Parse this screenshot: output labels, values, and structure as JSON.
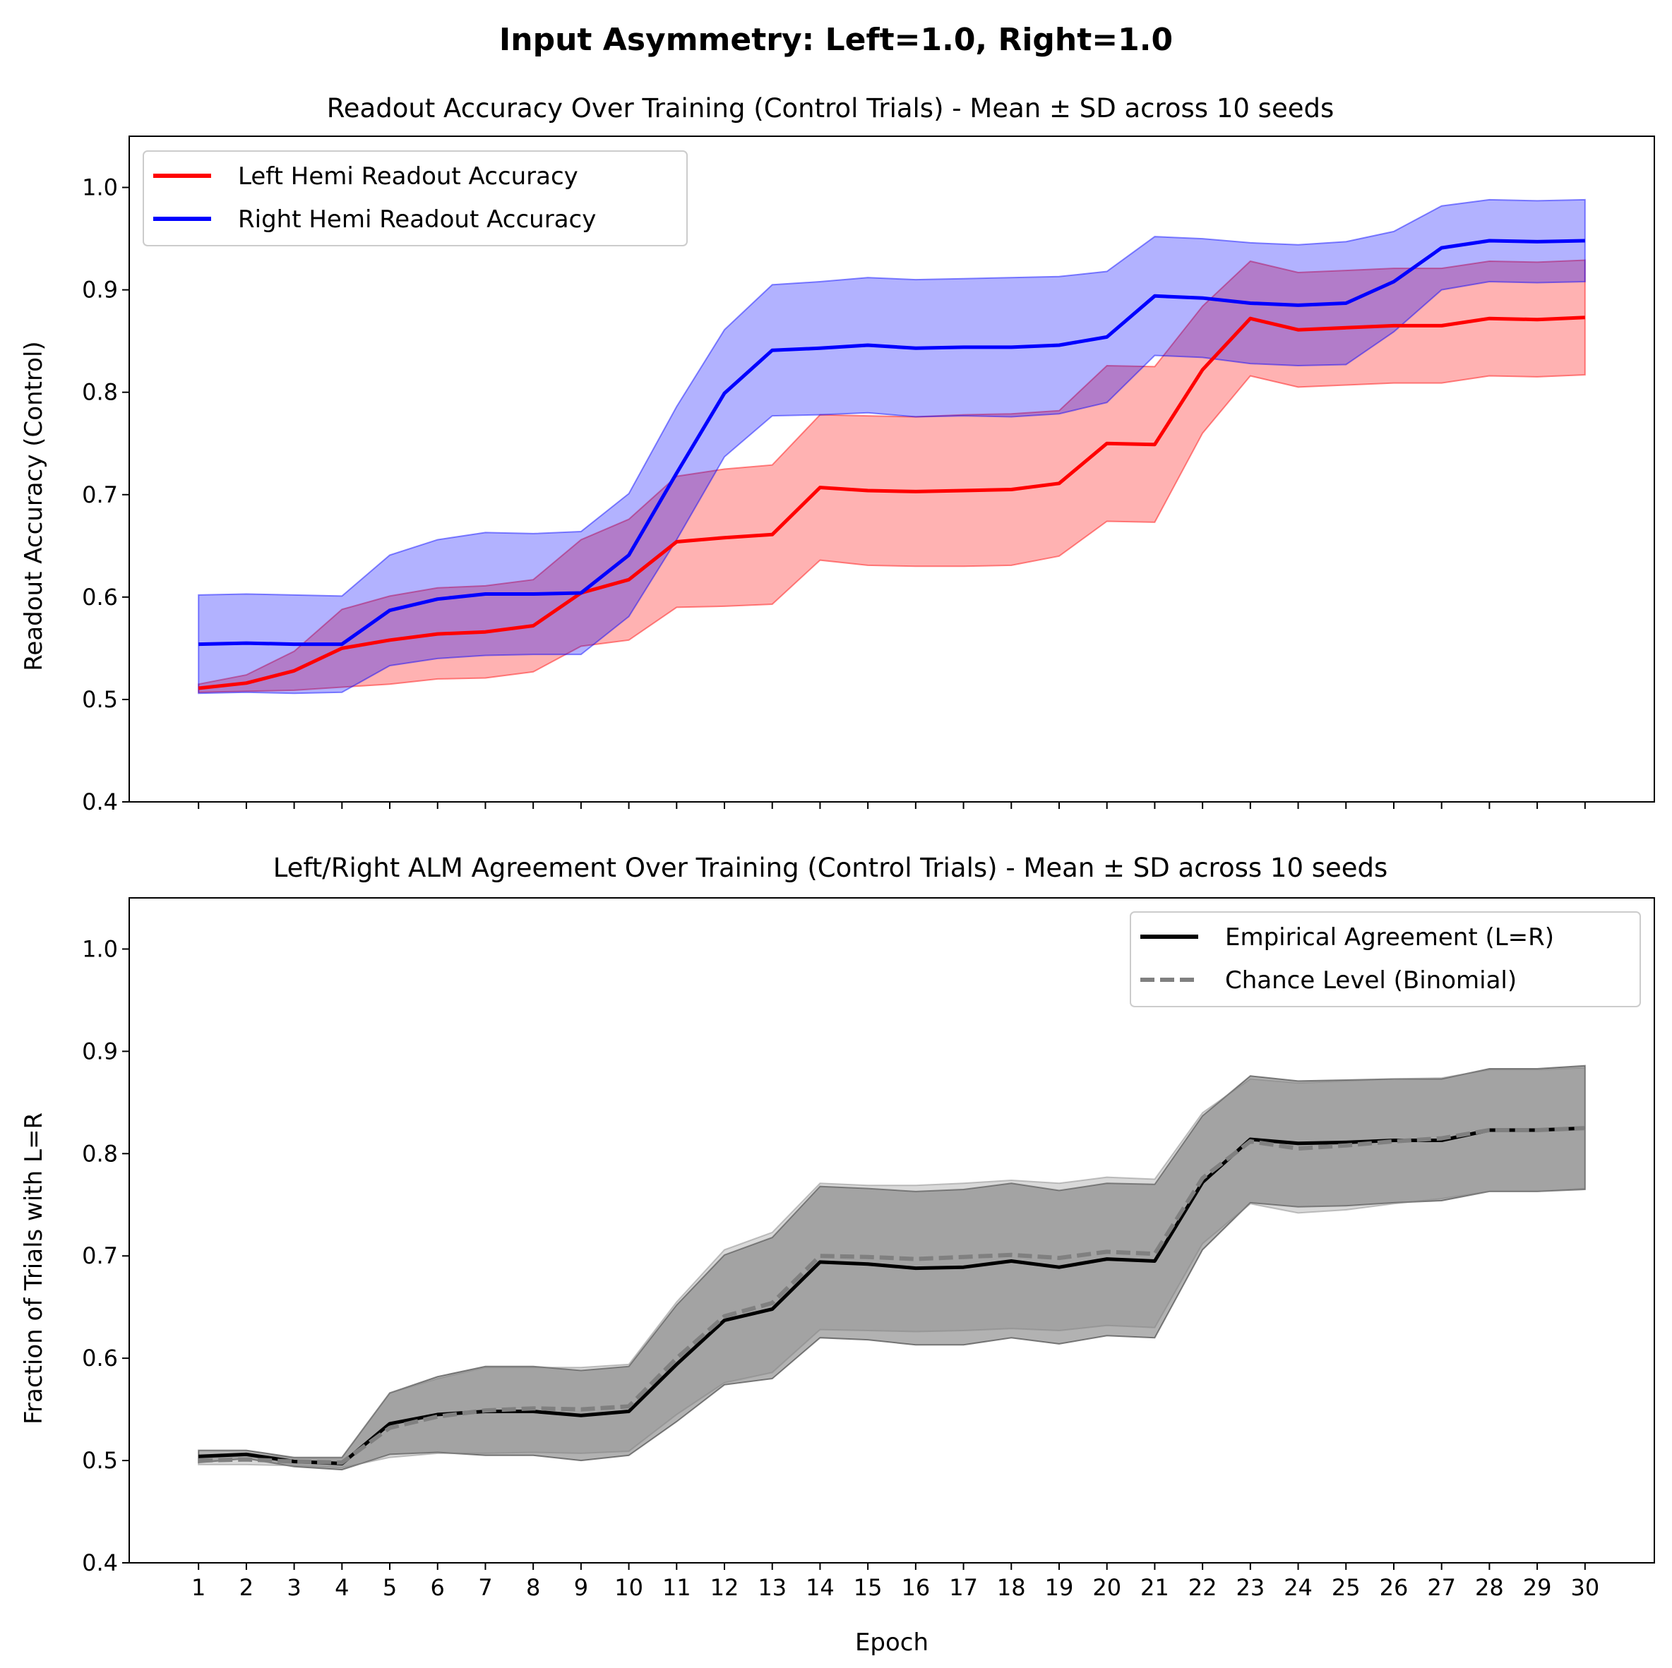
{
  "figure": {
    "suptitle": "Input Asymmetry: Left=1.0, Right=1.0"
  },
  "chart_data": [
    {
      "type": "line",
      "title": "Readout Accuracy Over Training (Control Trials) - Mean ± SD across 10 seeds",
      "xlabel": "",
      "ylabel": "Readout Accuracy (Control)",
      "x": [
        1,
        2,
        3,
        4,
        5,
        6,
        7,
        8,
        9,
        10,
        11,
        12,
        13,
        14,
        15,
        16,
        17,
        18,
        19,
        20,
        21,
        22,
        23,
        24,
        25,
        26,
        27,
        28,
        29,
        30
      ],
      "xlim": [
        -0.45,
        31.45
      ],
      "ylim": [
        0.4,
        1.05
      ],
      "yticks": [
        "0.4",
        "0.5",
        "0.6",
        "0.7",
        "0.8",
        "0.9",
        "1.0"
      ],
      "xtick_labels_shown": false,
      "grid": false,
      "legend_position": "upper-left",
      "series": [
        {
          "name": "Left Hemi Readout Accuracy",
          "color": "#ff0000",
          "values": [
            0.511,
            0.516,
            0.528,
            0.55,
            0.558,
            0.564,
            0.566,
            0.572,
            0.604,
            0.617,
            0.654,
            0.658,
            0.661,
            0.707,
            0.704,
            0.703,
            0.704,
            0.705,
            0.711,
            0.75,
            0.749,
            0.822,
            0.872,
            0.861,
            0.863,
            0.865,
            0.865,
            0.872,
            0.871,
            0.873
          ],
          "upper": [
            0.515,
            0.524,
            0.547,
            0.588,
            0.601,
            0.609,
            0.611,
            0.617,
            0.656,
            0.676,
            0.718,
            0.725,
            0.729,
            0.778,
            0.777,
            0.776,
            0.778,
            0.779,
            0.782,
            0.826,
            0.825,
            0.884,
            0.928,
            0.917,
            0.919,
            0.921,
            0.921,
            0.928,
            0.927,
            0.929
          ],
          "lower": [
            0.507,
            0.508,
            0.509,
            0.512,
            0.515,
            0.52,
            0.521,
            0.527,
            0.552,
            0.558,
            0.59,
            0.591,
            0.593,
            0.636,
            0.631,
            0.63,
            0.63,
            0.631,
            0.64,
            0.674,
            0.673,
            0.76,
            0.816,
            0.805,
            0.807,
            0.809,
            0.809,
            0.816,
            0.815,
            0.817
          ]
        },
        {
          "name": "Right Hemi Readout Accuracy",
          "color": "#0000ff",
          "values": [
            0.554,
            0.555,
            0.554,
            0.554,
            0.587,
            0.598,
            0.603,
            0.603,
            0.604,
            0.641,
            0.721,
            0.799,
            0.841,
            0.843,
            0.846,
            0.843,
            0.844,
            0.844,
            0.846,
            0.854,
            0.894,
            0.892,
            0.887,
            0.885,
            0.887,
            0.908,
            0.941,
            0.948,
            0.947,
            0.948
          ],
          "upper": [
            0.602,
            0.603,
            0.602,
            0.601,
            0.641,
            0.656,
            0.663,
            0.662,
            0.664,
            0.701,
            0.786,
            0.861,
            0.905,
            0.908,
            0.912,
            0.91,
            0.911,
            0.912,
            0.913,
            0.918,
            0.952,
            0.95,
            0.946,
            0.944,
            0.947,
            0.957,
            0.982,
            0.988,
            0.987,
            0.988
          ],
          "lower": [
            0.506,
            0.507,
            0.506,
            0.507,
            0.533,
            0.54,
            0.543,
            0.544,
            0.544,
            0.581,
            0.656,
            0.737,
            0.777,
            0.778,
            0.78,
            0.776,
            0.777,
            0.776,
            0.779,
            0.79,
            0.836,
            0.834,
            0.828,
            0.826,
            0.827,
            0.859,
            0.9,
            0.908,
            0.907,
            0.908
          ]
        }
      ]
    },
    {
      "type": "line",
      "title": "Left/Right ALM Agreement Over Training (Control Trials) - Mean ± SD across 10 seeds",
      "xlabel": "Epoch",
      "ylabel": "Fraction of Trials with L=R",
      "x": [
        1,
        2,
        3,
        4,
        5,
        6,
        7,
        8,
        9,
        10,
        11,
        12,
        13,
        14,
        15,
        16,
        17,
        18,
        19,
        20,
        21,
        22,
        23,
        24,
        25,
        26,
        27,
        28,
        29,
        30
      ],
      "xlim": [
        -0.45,
        31.45
      ],
      "ylim": [
        0.4,
        1.05
      ],
      "yticks": [
        "0.4",
        "0.5",
        "0.6",
        "0.7",
        "0.8",
        "0.9",
        "1.0"
      ],
      "xticks": [
        "1",
        "2",
        "3",
        "4",
        "5",
        "6",
        "7",
        "8",
        "9",
        "10",
        "11",
        "12",
        "13",
        "14",
        "15",
        "16",
        "17",
        "18",
        "19",
        "20",
        "21",
        "22",
        "23",
        "24",
        "25",
        "26",
        "27",
        "28",
        "29",
        "30"
      ],
      "grid": false,
      "legend_position": "upper-right",
      "series": [
        {
          "name": "Empirical Agreement (L=R)",
          "color": "#000000",
          "dashed": false,
          "values": [
            0.504,
            0.506,
            0.499,
            0.497,
            0.536,
            0.545,
            0.548,
            0.548,
            0.544,
            0.548,
            0.594,
            0.637,
            0.648,
            0.694,
            0.692,
            0.688,
            0.689,
            0.695,
            0.689,
            0.697,
            0.695,
            0.772,
            0.814,
            0.81,
            0.811,
            0.813,
            0.813,
            0.823,
            0.823,
            0.825
          ],
          "upper": [
            0.51,
            0.51,
            0.503,
            0.503,
            0.566,
            0.582,
            0.592,
            0.592,
            0.588,
            0.592,
            0.652,
            0.701,
            0.718,
            0.768,
            0.766,
            0.763,
            0.765,
            0.771,
            0.764,
            0.771,
            0.77,
            0.837,
            0.876,
            0.871,
            0.872,
            0.873,
            0.873,
            0.883,
            0.883,
            0.886
          ],
          "lower": [
            0.498,
            0.502,
            0.494,
            0.491,
            0.506,
            0.508,
            0.505,
            0.505,
            0.5,
            0.505,
            0.538,
            0.574,
            0.58,
            0.62,
            0.618,
            0.613,
            0.613,
            0.62,
            0.614,
            0.622,
            0.62,
            0.706,
            0.752,
            0.748,
            0.749,
            0.752,
            0.754,
            0.763,
            0.763,
            0.765
          ]
        },
        {
          "name": "Chance Level (Binomial)",
          "color": "#808080",
          "dashed": true,
          "values": [
            0.5,
            0.501,
            0.499,
            0.498,
            0.532,
            0.543,
            0.549,
            0.551,
            0.55,
            0.553,
            0.6,
            0.641,
            0.654,
            0.7,
            0.699,
            0.697,
            0.699,
            0.701,
            0.698,
            0.704,
            0.702,
            0.776,
            0.812,
            0.805,
            0.808,
            0.812,
            0.815,
            0.823,
            0.823,
            0.825
          ],
          "upper": [
            0.504,
            0.506,
            0.503,
            0.503,
            0.566,
            0.58,
            0.591,
            0.591,
            0.591,
            0.594,
            0.655,
            0.706,
            0.723,
            0.771,
            0.769,
            0.769,
            0.771,
            0.774,
            0.771,
            0.777,
            0.775,
            0.84,
            0.873,
            0.869,
            0.871,
            0.873,
            0.874,
            0.882,
            0.882,
            0.884
          ],
          "lower": [
            0.496,
            0.496,
            0.495,
            0.493,
            0.503,
            0.507,
            0.507,
            0.508,
            0.507,
            0.509,
            0.545,
            0.576,
            0.586,
            0.628,
            0.627,
            0.626,
            0.627,
            0.629,
            0.627,
            0.632,
            0.63,
            0.712,
            0.751,
            0.742,
            0.745,
            0.751,
            0.756,
            0.763,
            0.763,
            0.766
          ]
        }
      ]
    }
  ]
}
